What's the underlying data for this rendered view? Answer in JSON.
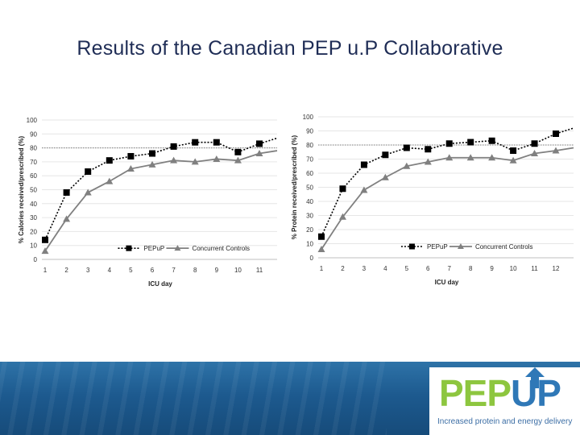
{
  "slide": {
    "title": "Results of the Canadian PEP u.P Collaborative"
  },
  "logo": {
    "pep": "PEP",
    "up": "UP",
    "tagline": "Increased protein and energy delivery"
  },
  "colors": {
    "title": "#1f2d56",
    "pepup_series": "#000000",
    "control_series": "#808080",
    "reference_line": "#7f7f7f",
    "logo_green": "#8dc63f",
    "logo_blue": "#2f78b7",
    "band": "#1d5a8f"
  },
  "chart_data": [
    {
      "type": "line",
      "title": "",
      "xlabel": "ICU day",
      "ylabel": "% Calories received/prescribed (%)",
      "x": [
        1,
        2,
        3,
        4,
        5,
        6,
        7,
        8,
        9,
        10,
        11
      ],
      "ylim": [
        0,
        100
      ],
      "yticks": [
        0,
        10,
        20,
        30,
        40,
        50,
        60,
        70,
        80,
        90,
        100
      ],
      "reference_line": 80,
      "grid": true,
      "legend": "bottom",
      "series": [
        {
          "name": "PEPuP",
          "marker": "square",
          "line": "dotted",
          "values": [
            14,
            48,
            63,
            71,
            74,
            76,
            81,
            84,
            84,
            77,
            83
          ]
        },
        {
          "name": "Concurrent Controls",
          "marker": "triangle",
          "line": "solid",
          "values": [
            6,
            29,
            48,
            56,
            65,
            68,
            71,
            70,
            72,
            71,
            76
          ]
        }
      ]
    },
    {
      "type": "line",
      "title": "",
      "xlabel": "ICU day",
      "ylabel": "% Protein received/prescribed (%)",
      "x": [
        1,
        2,
        3,
        4,
        5,
        6,
        7,
        8,
        9,
        10,
        11,
        12
      ],
      "ylim": [
        0,
        100
      ],
      "yticks": [
        0,
        10,
        20,
        30,
        40,
        50,
        60,
        70,
        80,
        90,
        100
      ],
      "reference_line": 80,
      "grid": true,
      "legend": "bottom",
      "series": [
        {
          "name": "PEPuP",
          "marker": "square",
          "line": "dotted",
          "values": [
            15,
            49,
            66,
            73,
            78,
            77,
            81,
            82,
            83,
            76,
            81,
            88
          ]
        },
        {
          "name": "Concurrent Controls",
          "marker": "triangle",
          "line": "solid",
          "values": [
            6,
            29,
            48,
            57,
            65,
            68,
            71,
            71,
            71,
            69,
            74,
            76
          ]
        }
      ]
    }
  ]
}
